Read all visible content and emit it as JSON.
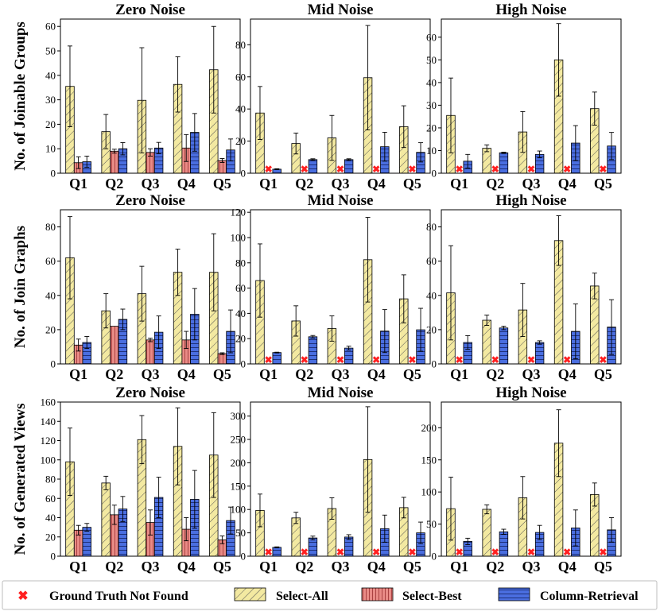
{
  "legend": {
    "gt": "Ground Truth Not Found",
    "all": "Select-All",
    "best": "Select-Best",
    "col": "Column-Retrieval"
  },
  "colors": {
    "select_all_fill": "#f3e9a1",
    "select_best_fill": "#e98b86",
    "column_retrieval_fill": "#4a6ee0",
    "gt_marker": "#ff2020"
  },
  "chart_data": [
    {
      "type": "bar",
      "title": "Zero Noise",
      "ylabel": "No. of Joinable Groups",
      "categories": [
        "Q1",
        "Q2",
        "Q3",
        "Q4",
        "Q5"
      ],
      "ylim": [
        0,
        63
      ],
      "yticks": [
        0,
        10,
        20,
        30,
        40,
        50,
        60
      ],
      "series": [
        {
          "name": "Select-All",
          "values": [
            35.5,
            17,
            29.8,
            36.3,
            42.3
          ],
          "err": [
            16.5,
            7,
            21.5,
            11.3,
            17.7
          ]
        },
        {
          "name": "Select-Best",
          "values": [
            4.3,
            9,
            8.5,
            10.3,
            5.2
          ],
          "err": [
            2.4,
            0.8,
            1.5,
            5.5,
            0.8
          ]
        },
        {
          "name": "Column-Retrieval",
          "values": [
            4.7,
            10,
            10.3,
            16.7,
            9.5
          ],
          "err": [
            2.3,
            2.5,
            2.3,
            7.7,
            4.5
          ]
        }
      ]
    },
    {
      "type": "bar",
      "title": "Mid Noise",
      "ylabel": "",
      "categories": [
        "Q1",
        "Q2",
        "Q3",
        "Q4",
        "Q5"
      ],
      "ylim": [
        0,
        96
      ],
      "yticks": [
        0,
        20,
        40,
        60,
        80
      ],
      "series": [
        {
          "name": "Select-All",
          "values": [
            37.5,
            18.5,
            22,
            59.5,
            29
          ],
          "err": [
            16.5,
            6.5,
            14,
            32.5,
            13
          ]
        },
        {
          "name": "Select-Best",
          "values": [
            0,
            0,
            0,
            0,
            0
          ],
          "err": [
            0,
            0,
            0,
            0,
            0
          ],
          "ground_truth_not_found": [
            true,
            true,
            true,
            true,
            true
          ]
        },
        {
          "name": "Column-Retrieval",
          "values": [
            2.5,
            8.5,
            8.5,
            16.5,
            13
          ],
          "err": [
            0.3,
            0.5,
            0.5,
            9,
            6
          ]
        }
      ]
    },
    {
      "type": "bar",
      "title": "High Noise",
      "ylabel": "",
      "categories": [
        "Q1",
        "Q2",
        "Q3",
        "Q4",
        "Q5"
      ],
      "ylim": [
        0,
        68
      ],
      "yticks": [
        0,
        10,
        20,
        30,
        40,
        50,
        60
      ],
      "series": [
        {
          "name": "Select-All",
          "values": [
            25.5,
            11,
            18.2,
            50,
            28.5
          ],
          "err": [
            16.5,
            1.5,
            9,
            16,
            7.3
          ]
        },
        {
          "name": "Select-Best",
          "values": [
            0,
            0,
            0,
            0,
            0
          ],
          "err": [
            0,
            0,
            0,
            0,
            0
          ],
          "ground_truth_not_found": [
            true,
            true,
            true,
            true,
            true
          ]
        },
        {
          "name": "Column-Retrieval",
          "values": [
            5.3,
            9,
            8.3,
            13.3,
            12
          ],
          "err": [
            3,
            0.3,
            1.5,
            7.7,
            6
          ]
        }
      ]
    },
    {
      "type": "bar",
      "title": "Zero Noise",
      "ylabel": "No. of Join Graphs",
      "categories": [
        "Q1",
        "Q2",
        "Q3",
        "Q4",
        "Q5"
      ],
      "ylim": [
        0,
        90
      ],
      "yticks": [
        0,
        20,
        40,
        60,
        80
      ],
      "series": [
        {
          "name": "Select-All",
          "values": [
            62,
            31,
            41,
            53.5,
            53.5
          ],
          "err": [
            24,
            10,
            16,
            13.5,
            22.5
          ]
        },
        {
          "name": "Select-Best",
          "values": [
            11,
            22,
            14,
            14,
            6
          ],
          "err": [
            3.5,
            0,
            1,
            5,
            0.5
          ]
        },
        {
          "name": "Column-Retrieval",
          "values": [
            12.5,
            26,
            18.5,
            29,
            19
          ],
          "err": [
            3.5,
            6,
            9.5,
            15,
            12.5
          ]
        }
      ]
    },
    {
      "type": "bar",
      "title": "Mid Noise",
      "ylabel": "",
      "categories": [
        "Q1",
        "Q2",
        "Q3",
        "Q4",
        "Q5"
      ],
      "ylim": [
        0,
        122
      ],
      "yticks": [
        0,
        20,
        40,
        60,
        80,
        100,
        120
      ],
      "series": [
        {
          "name": "Select-All",
          "values": [
            66,
            34,
            28,
            82.5,
            51.5
          ],
          "err": [
            29,
            12,
            10,
            33.5,
            19
          ]
        },
        {
          "name": "Select-Best",
          "values": [
            0,
            0,
            0,
            0,
            0
          ],
          "err": [
            0,
            0,
            0,
            0,
            0
          ],
          "ground_truth_not_found": [
            true,
            true,
            true,
            true,
            true
          ]
        },
        {
          "name": "Column-Retrieval",
          "values": [
            9,
            21.5,
            12.5,
            26,
            27
          ],
          "err": [
            0.3,
            1,
            1.5,
            17,
            17
          ]
        }
      ]
    },
    {
      "type": "bar",
      "title": "High Noise",
      "ylabel": "",
      "categories": [
        "Q1",
        "Q2",
        "Q3",
        "Q4",
        "Q5"
      ],
      "ylim": [
        0,
        90
      ],
      "yticks": [
        0,
        20,
        40,
        60,
        80
      ],
      "series": [
        {
          "name": "Select-All",
          "values": [
            41.5,
            25.5,
            31.5,
            72,
            45.5
          ],
          "err": [
            27.5,
            3,
            15.5,
            14.5,
            7.5
          ]
        },
        {
          "name": "Select-Best",
          "values": [
            0,
            0,
            0,
            0,
            0
          ],
          "err": [
            0,
            0,
            0,
            0,
            0
          ],
          "ground_truth_not_found": [
            true,
            true,
            true,
            true,
            true
          ]
        },
        {
          "name": "Column-Retrieval",
          "values": [
            12.5,
            21,
            12.5,
            19,
            21.5
          ],
          "err": [
            4,
            1,
            1,
            16,
            16
          ]
        }
      ]
    },
    {
      "type": "bar",
      "title": "Zero Noise",
      "ylabel": "No. of Generated Views",
      "categories": [
        "Q1",
        "Q2",
        "Q3",
        "Q4",
        "Q5"
      ],
      "ylim": [
        0,
        160
      ],
      "yticks": [
        0,
        20,
        40,
        60,
        80,
        100,
        120,
        140,
        160
      ],
      "series": [
        {
          "name": "Select-All",
          "values": [
            98,
            76,
            121,
            114,
            105
          ],
          "err": [
            35,
            7,
            25,
            40,
            44
          ]
        },
        {
          "name": "Select-Best",
          "values": [
            27,
            43,
            35,
            28,
            17
          ],
          "err": [
            5,
            10,
            13,
            12,
            4
          ]
        },
        {
          "name": "Column-Retrieval",
          "values": [
            30,
            49,
            61,
            59,
            37
          ],
          "err": [
            4,
            13,
            21,
            30,
            14
          ]
        }
      ]
    },
    {
      "type": "bar",
      "title": "Mid Noise",
      "ylabel": "",
      "categories": [
        "Q1",
        "Q2",
        "Q3",
        "Q4",
        "Q5"
      ],
      "ylim": [
        0,
        330
      ],
      "yticks": [
        0,
        50,
        100,
        150,
        200,
        250,
        300
      ],
      "series": [
        {
          "name": "Select-All",
          "values": [
            98,
            82,
            102,
            207,
            104
          ],
          "err": [
            35,
            12,
            23,
            113,
            22
          ]
        },
        {
          "name": "Select-Best",
          "values": [
            0,
            0,
            0,
            0,
            0
          ],
          "err": [
            0,
            0,
            0,
            0,
            0
          ],
          "ground_truth_not_found": [
            true,
            true,
            true,
            true,
            true
          ]
        },
        {
          "name": "Column-Retrieval",
          "values": [
            19,
            39,
            41,
            59,
            50
          ],
          "err": [
            1,
            4,
            5,
            29,
            23
          ]
        }
      ]
    },
    {
      "type": "bar",
      "title": "High Noise",
      "ylabel": "",
      "categories": [
        "Q1",
        "Q2",
        "Q3",
        "Q4",
        "Q5"
      ],
      "ylim": [
        0,
        240
      ],
      "yticks": [
        0,
        50,
        100,
        150,
        200
      ],
      "series": [
        {
          "name": "Select-All",
          "values": [
            74,
            73,
            91,
            176,
            96
          ],
          "err": [
            49,
            7,
            33,
            52,
            18
          ]
        },
        {
          "name": "Select-Best",
          "values": [
            0,
            0,
            0,
            0,
            0
          ],
          "err": [
            0,
            0,
            0,
            0,
            0
          ],
          "ground_truth_not_found": [
            true,
            true,
            true,
            true,
            true
          ]
        },
        {
          "name": "Column-Retrieval",
          "values": [
            23,
            38,
            37,
            44,
            41
          ],
          "err": [
            5,
            4,
            11,
            28,
            19
          ]
        }
      ]
    }
  ]
}
